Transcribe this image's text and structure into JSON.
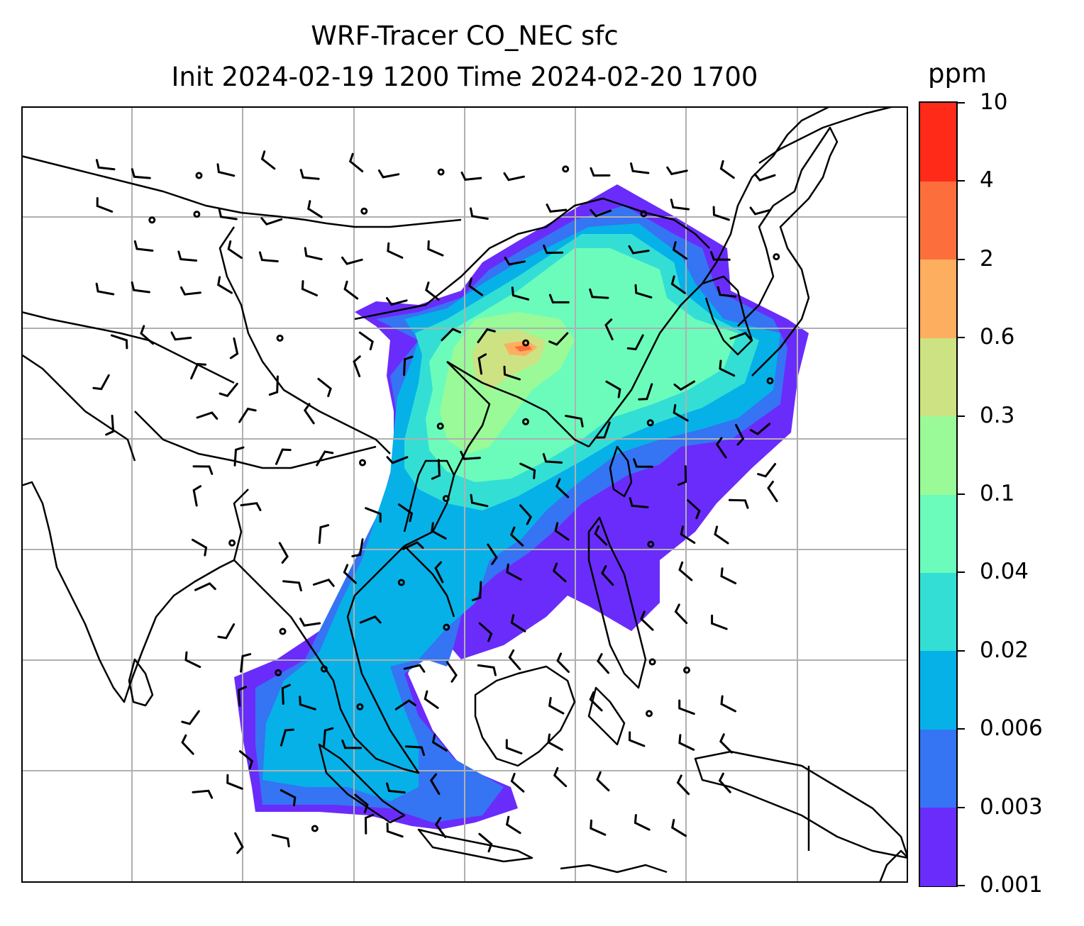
{
  "title": {
    "line1": "WRF-Tracer CO_NEC sfc",
    "line2": "Init 2024-02-19 1200 Time 2024-02-20 1700"
  },
  "colorbar": {
    "unit": "ppm",
    "levels": [
      "0.001",
      "0.003",
      "0.006",
      "0.02",
      "0.04",
      "0.1",
      "0.3",
      "0.6",
      "2",
      "4",
      "10"
    ],
    "colors": [
      "#6a2cfb",
      "#3574f3",
      "#06b1e8",
      "#33dfd4",
      "#6bfcbc",
      "#9afa98",
      "#cde282",
      "#feae5f",
      "#fc6f3d",
      "#ff2a18"
    ]
  },
  "map": {
    "gridlines": true,
    "field": "CO_NEC",
    "overlay": "wind barbs"
  }
}
